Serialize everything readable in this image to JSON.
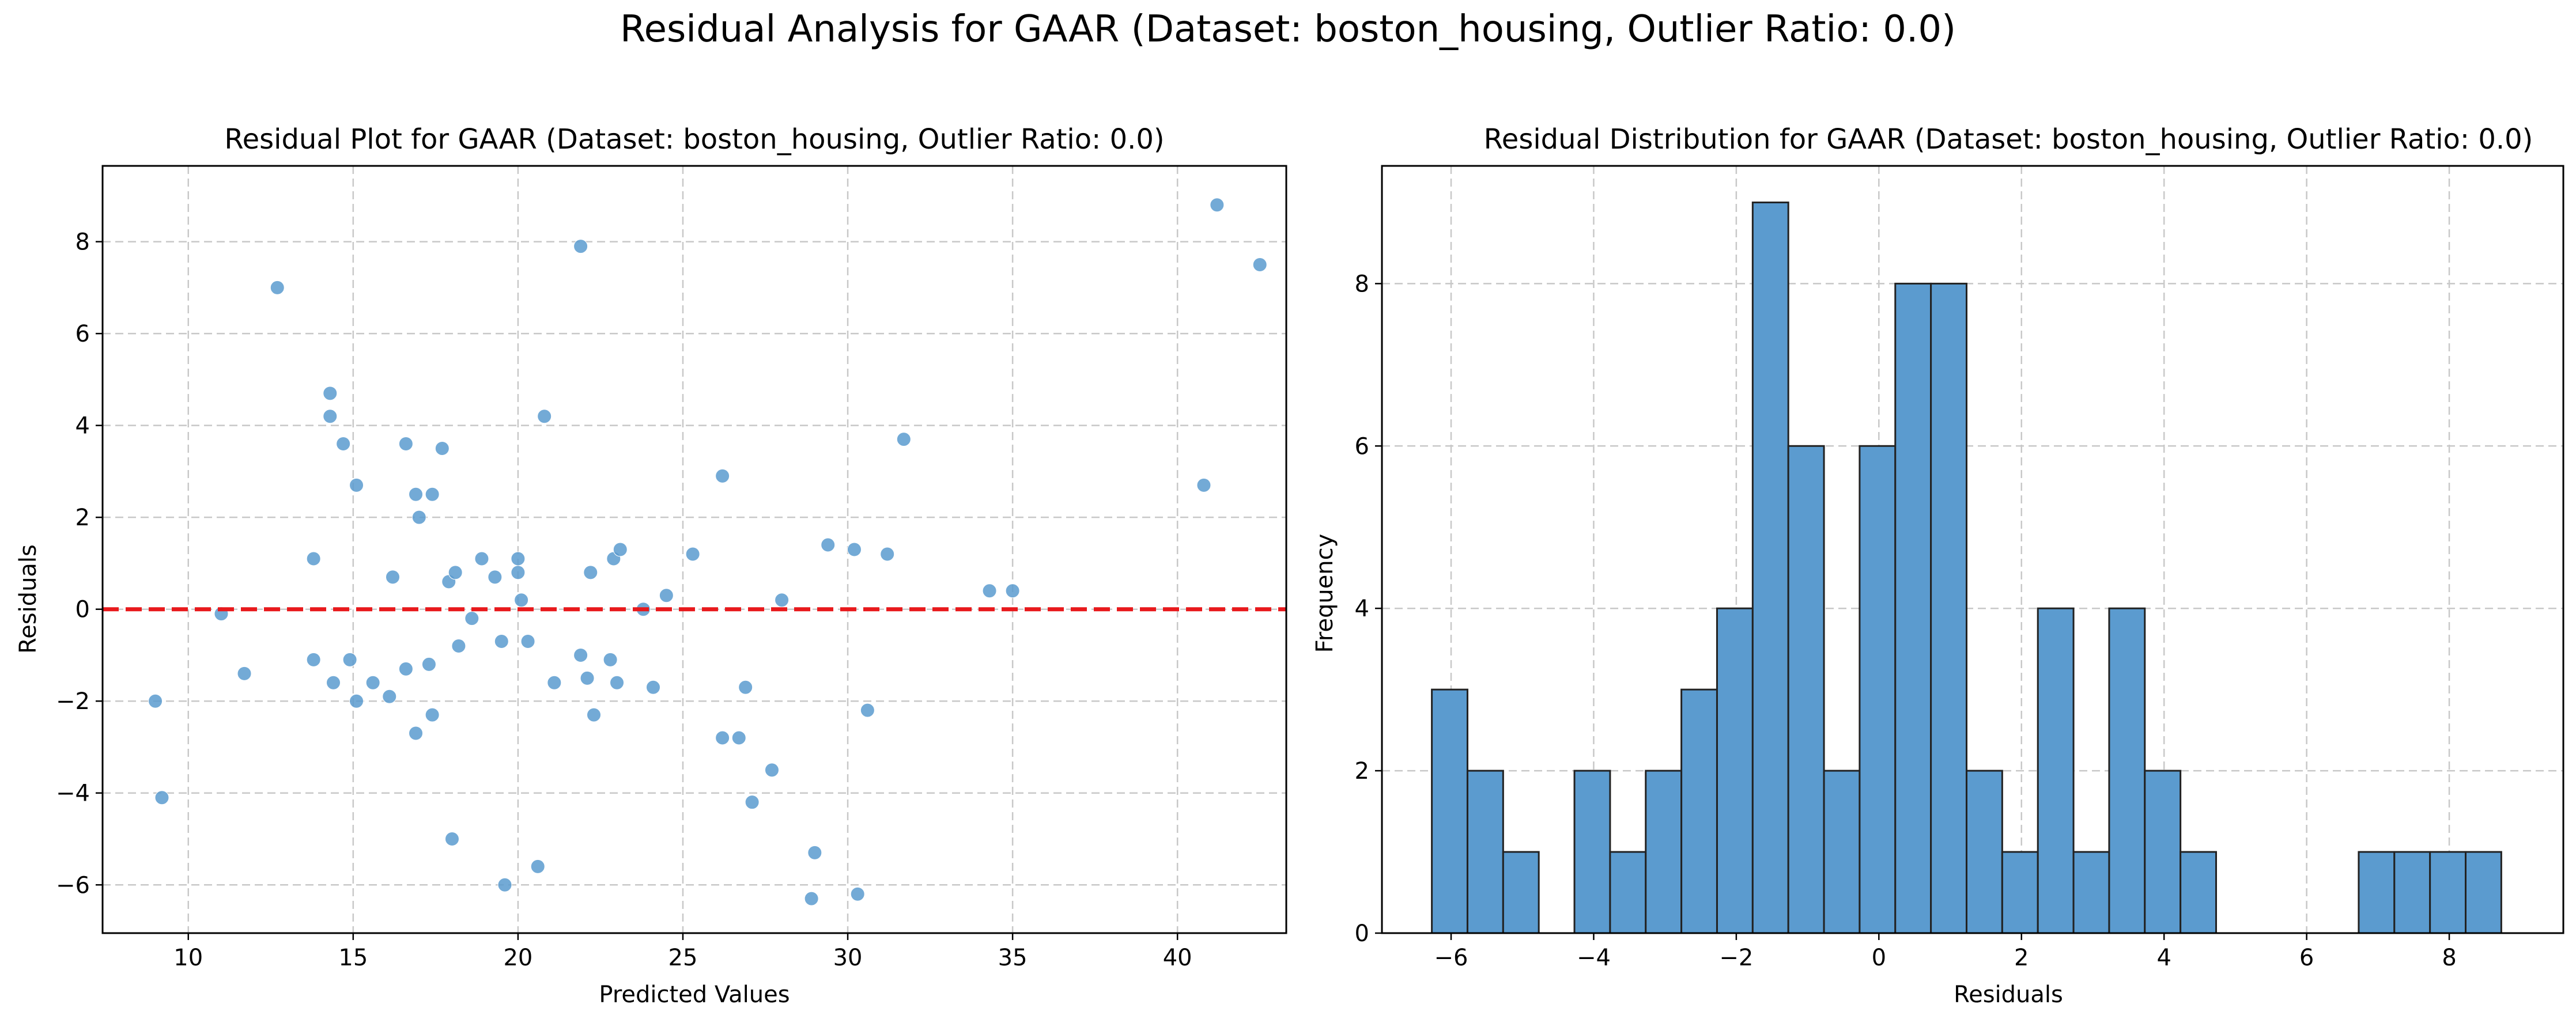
{
  "figure": {
    "suptitle": "Residual Analysis for GAAR (Dataset: boston_housing, Outlier Ratio: 0.0)"
  },
  "chart_data": [
    {
      "type": "scatter",
      "title": "Residual Plot for GAAR (Dataset: boston_housing, Outlier Ratio: 0.0)",
      "xlabel": "Predicted Values",
      "ylabel": "Residuals",
      "xlim": [
        7.4,
        43.3
      ],
      "ylim": [
        -7.05,
        9.65
      ],
      "xticks": [
        10,
        15,
        20,
        25,
        30,
        35,
        40
      ],
      "yticks": [
        -6,
        -4,
        -2,
        0,
        2,
        4,
        6,
        8
      ],
      "grid": true,
      "point_color": "#5b9bcf",
      "reference_line": {
        "y": 0,
        "color": "#e8191c",
        "style": "dashed"
      },
      "points": [
        [
          9.0,
          -2.0
        ],
        [
          9.2,
          -4.1
        ],
        [
          11.0,
          -0.1
        ],
        [
          11.7,
          -1.4
        ],
        [
          12.7,
          7.0
        ],
        [
          13.8,
          1.1
        ],
        [
          13.8,
          -1.1
        ],
        [
          14.3,
          4.7
        ],
        [
          14.3,
          4.2
        ],
        [
          14.4,
          -1.6
        ],
        [
          14.7,
          3.6
        ],
        [
          14.9,
          -1.1
        ],
        [
          15.1,
          -2.0
        ],
        [
          15.1,
          2.7
        ],
        [
          15.6,
          -1.6
        ],
        [
          16.1,
          -1.9
        ],
        [
          16.2,
          0.7
        ],
        [
          16.6,
          3.6
        ],
        [
          16.6,
          -1.3
        ],
        [
          16.9,
          2.5
        ],
        [
          16.9,
          -2.7
        ],
        [
          17.0,
          2.0
        ],
        [
          17.3,
          -1.2
        ],
        [
          17.4,
          2.5
        ],
        [
          17.4,
          -2.3
        ],
        [
          17.7,
          3.5
        ],
        [
          17.9,
          0.6
        ],
        [
          18.0,
          -5.0
        ],
        [
          18.1,
          0.8
        ],
        [
          18.2,
          -0.8
        ],
        [
          18.6,
          -0.2
        ],
        [
          18.9,
          1.1
        ],
        [
          19.3,
          0.7
        ],
        [
          19.5,
          -0.7
        ],
        [
          19.6,
          -6.0
        ],
        [
          20.0,
          1.1
        ],
        [
          20.0,
          0.8
        ],
        [
          20.1,
          0.2
        ],
        [
          20.3,
          -0.7
        ],
        [
          20.6,
          -5.6
        ],
        [
          20.8,
          4.2
        ],
        [
          21.1,
          -1.6
        ],
        [
          21.9,
          7.9
        ],
        [
          21.9,
          -1.0
        ],
        [
          22.1,
          -1.5
        ],
        [
          22.2,
          0.8
        ],
        [
          22.3,
          -2.3
        ],
        [
          22.8,
          -1.1
        ],
        [
          22.9,
          1.1
        ],
        [
          23.0,
          -1.6
        ],
        [
          23.1,
          1.3
        ],
        [
          23.8,
          0.0
        ],
        [
          24.1,
          -1.7
        ],
        [
          24.5,
          0.3
        ],
        [
          25.3,
          1.2
        ],
        [
          26.2,
          2.9
        ],
        [
          26.2,
          -2.8
        ],
        [
          26.7,
          -2.8
        ],
        [
          26.9,
          -1.7
        ],
        [
          27.1,
          -4.2
        ],
        [
          27.7,
          -3.5
        ],
        [
          28.0,
          0.2
        ],
        [
          28.9,
          -6.3
        ],
        [
          29.0,
          -5.3
        ],
        [
          29.4,
          1.4
        ],
        [
          30.2,
          1.3
        ],
        [
          30.3,
          -6.2
        ],
        [
          30.6,
          -2.2
        ],
        [
          31.2,
          1.2
        ],
        [
          31.7,
          3.7
        ],
        [
          34.3,
          0.4
        ],
        [
          35.0,
          0.4
        ],
        [
          40.8,
          2.7
        ],
        [
          41.2,
          8.8
        ],
        [
          42.5,
          7.5
        ]
      ]
    },
    {
      "type": "bar",
      "subtype": "histogram",
      "title": "Residual Distribution for GAAR (Dataset: boston_housing, Outlier Ratio: 0.0)",
      "xlabel": "Residuals",
      "ylabel": "Frequency",
      "xlim": [
        -6.97,
        9.6
      ],
      "ylim": [
        0,
        9.45
      ],
      "xticks": [
        -6,
        -4,
        -2,
        0,
        2,
        4,
        6,
        8
      ],
      "yticks": [
        0,
        2,
        4,
        6,
        8
      ],
      "grid": true,
      "bar_color": "#5b9bcf",
      "bin_start": -6.27,
      "bin_width": 0.5,
      "values": [
        3,
        2,
        1,
        0,
        2,
        1,
        2,
        3,
        4,
        9,
        6,
        2,
        6,
        8,
        8,
        2,
        1,
        4,
        1,
        4,
        2,
        1,
        0,
        0,
        0,
        0,
        1,
        1,
        1,
        1
      ]
    }
  ]
}
